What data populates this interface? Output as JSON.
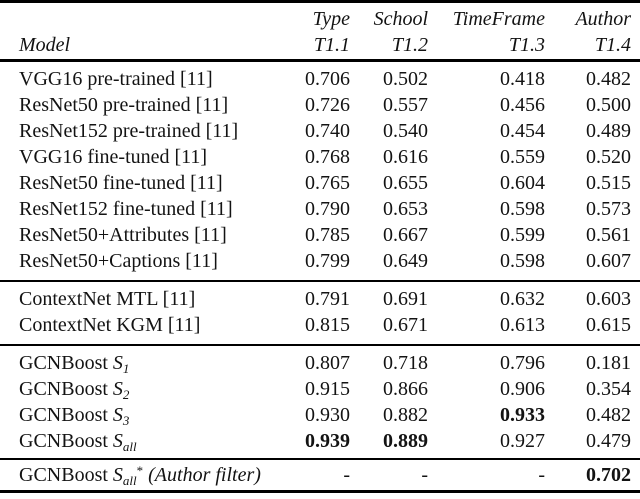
{
  "table": {
    "header": {
      "model_label": "Model",
      "columns": [
        {
          "title": "Type",
          "task": "T1.1"
        },
        {
          "title": "School",
          "task": "T1.2"
        },
        {
          "title": "TimeFrame",
          "task": "T1.3"
        },
        {
          "title": "Author",
          "task": "T1.4"
        }
      ]
    },
    "groups": [
      {
        "rows": [
          {
            "model_main": "VGG16 pre-trained [11]",
            "values": [
              "0.706",
              "0.502",
              "0.418",
              "0.482"
            ]
          },
          {
            "model_main": "ResNet50 pre-trained [11]",
            "values": [
              "0.726",
              "0.557",
              "0.456",
              "0.500"
            ]
          },
          {
            "model_main": "ResNet152 pre-trained [11]",
            "values": [
              "0.740",
              "0.540",
              "0.454",
              "0.489"
            ]
          },
          {
            "model_main": "VGG16 fine-tuned [11]",
            "values": [
              "0.768",
              "0.616",
              "0.559",
              "0.520"
            ]
          },
          {
            "model_main": "ResNet50 fine-tuned [11]",
            "values": [
              "0.765",
              "0.655",
              "0.604",
              "0.515"
            ]
          },
          {
            "model_main": "ResNet152 fine-tuned [11]",
            "values": [
              "0.790",
              "0.653",
              "0.598",
              "0.573"
            ]
          },
          {
            "model_main": "ResNet50+Attributes [11]",
            "values": [
              "0.785",
              "0.667",
              "0.599",
              "0.561"
            ]
          },
          {
            "model_main": "ResNet50+Captions [11]",
            "values": [
              "0.799",
              "0.649",
              "0.598",
              "0.607"
            ]
          }
        ]
      },
      {
        "rows": [
          {
            "model_main": "ContextNet MTL [11]",
            "values": [
              "0.791",
              "0.691",
              "0.632",
              "0.603"
            ]
          },
          {
            "model_main": "ContextNet KGM [11]",
            "values": [
              "0.815",
              "0.671",
              "0.613",
              "0.615"
            ]
          }
        ]
      },
      {
        "rows": [
          {
            "model_main": "GCNBoost ",
            "model_var": "S",
            "model_sub": "1",
            "values": [
              "0.807",
              "0.718",
              "0.796",
              "0.181"
            ],
            "flags": [
              "",
              "",
              "",
              ""
            ]
          },
          {
            "model_main": "GCNBoost ",
            "model_var": "S",
            "model_sub": "2",
            "values": [
              "0.915",
              "0.866",
              "0.906",
              "0.354"
            ],
            "flags": [
              "",
              "",
              "",
              ""
            ]
          },
          {
            "model_main": "GCNBoost ",
            "model_var": "S",
            "model_sub": "3",
            "values": [
              "0.930",
              "0.882",
              "0.933",
              "0.482"
            ],
            "flags": [
              "",
              "",
              "bold",
              ""
            ]
          },
          {
            "model_main": "GCNBoost ",
            "model_var": "S",
            "model_sub": "all",
            "values": [
              "0.939",
              "0.889",
              "0.927",
              "0.479"
            ],
            "flags": [
              "bold",
              "bold",
              "",
              ""
            ]
          }
        ]
      },
      {
        "rows": [
          {
            "model_main": "GCNBoost ",
            "model_var": "S",
            "model_sub": "all",
            "model_sup": "*",
            "model_note": " (Author filter)",
            "values": [
              "-",
              "-",
              "-",
              "0.702"
            ],
            "flags": [
              "",
              "",
              "",
              "bold"
            ]
          }
        ]
      }
    ]
  }
}
